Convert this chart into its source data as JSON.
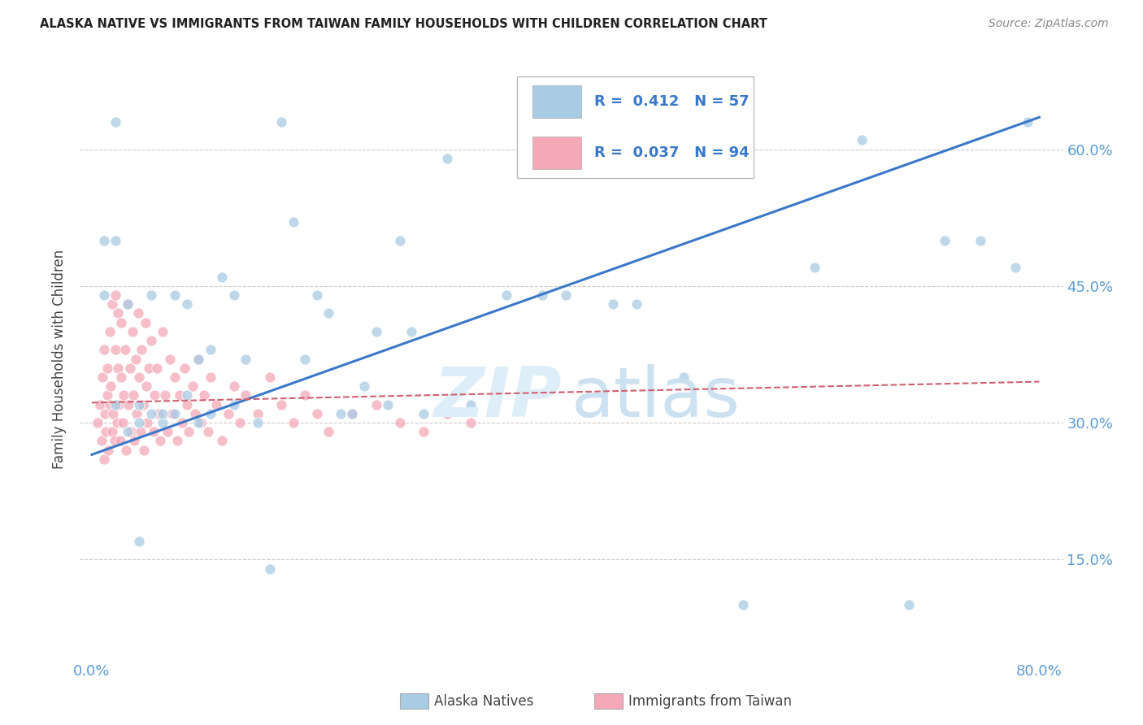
{
  "title": "ALASKA NATIVE VS IMMIGRANTS FROM TAIWAN FAMILY HOUSEHOLDS WITH CHILDREN CORRELATION CHART",
  "source": "Source: ZipAtlas.com",
  "ylabel": "Family Households with Children",
  "ytick_labels": [
    "15.0%",
    "30.0%",
    "45.0%",
    "60.0%"
  ],
  "ytick_values": [
    0.15,
    0.3,
    0.45,
    0.6
  ],
  "xlim": [
    -0.01,
    0.82
  ],
  "ylim": [
    0.04,
    0.7
  ],
  "legend_R1": "0.412",
  "legend_N1": "57",
  "legend_R2": "0.037",
  "legend_N2": "94",
  "color_blue": "#a8cce4",
  "color_pink": "#f4a8b8",
  "trendline_blue_color": "#3a78c9",
  "trendline_pink_color": "#d06070",
  "alaska_x": [
    0.01,
    0.01,
    0.02,
    0.02,
    0.02,
    0.03,
    0.03,
    0.04,
    0.04,
    0.05,
    0.05,
    0.06,
    0.06,
    0.07,
    0.07,
    0.08,
    0.08,
    0.09,
    0.09,
    0.1,
    0.1,
    0.11,
    0.12,
    0.12,
    0.13,
    0.14,
    0.15,
    0.16,
    0.17,
    0.18,
    0.19,
    0.2,
    0.21,
    0.22,
    0.23,
    0.24,
    0.25,
    0.26,
    0.27,
    0.28,
    0.3,
    0.32,
    0.35,
    0.38,
    0.4,
    0.44,
    0.46,
    0.5,
    0.55,
    0.61,
    0.65,
    0.69,
    0.72,
    0.75,
    0.78,
    0.79,
    0.04
  ],
  "alaska_y": [
    0.44,
    0.5,
    0.32,
    0.63,
    0.5,
    0.29,
    0.43,
    0.3,
    0.32,
    0.31,
    0.44,
    0.3,
    0.31,
    0.31,
    0.44,
    0.33,
    0.43,
    0.3,
    0.37,
    0.31,
    0.38,
    0.46,
    0.32,
    0.44,
    0.37,
    0.3,
    0.14,
    0.63,
    0.52,
    0.37,
    0.44,
    0.42,
    0.31,
    0.31,
    0.34,
    0.4,
    0.32,
    0.5,
    0.4,
    0.31,
    0.59,
    0.32,
    0.44,
    0.44,
    0.44,
    0.43,
    0.43,
    0.35,
    0.1,
    0.47,
    0.61,
    0.1,
    0.5,
    0.5,
    0.47,
    0.63,
    0.17
  ],
  "taiwan_x": [
    0.005,
    0.007,
    0.008,
    0.009,
    0.01,
    0.01,
    0.011,
    0.012,
    0.013,
    0.013,
    0.014,
    0.015,
    0.015,
    0.016,
    0.017,
    0.017,
    0.018,
    0.019,
    0.02,
    0.02,
    0.021,
    0.022,
    0.022,
    0.023,
    0.024,
    0.025,
    0.025,
    0.026,
    0.027,
    0.028,
    0.029,
    0.03,
    0.031,
    0.032,
    0.033,
    0.034,
    0.035,
    0.036,
    0.037,
    0.038,
    0.039,
    0.04,
    0.041,
    0.042,
    0.043,
    0.044,
    0.045,
    0.046,
    0.047,
    0.048,
    0.05,
    0.052,
    0.053,
    0.055,
    0.056,
    0.058,
    0.06,
    0.062,
    0.064,
    0.066,
    0.068,
    0.07,
    0.072,
    0.074,
    0.076,
    0.078,
    0.08,
    0.082,
    0.085,
    0.087,
    0.09,
    0.092,
    0.095,
    0.098,
    0.1,
    0.105,
    0.11,
    0.115,
    0.12,
    0.125,
    0.13,
    0.14,
    0.15,
    0.16,
    0.17,
    0.18,
    0.19,
    0.2,
    0.22,
    0.24,
    0.26,
    0.28,
    0.3,
    0.32
  ],
  "taiwan_y": [
    0.3,
    0.32,
    0.28,
    0.35,
    0.26,
    0.38,
    0.31,
    0.29,
    0.33,
    0.36,
    0.27,
    0.4,
    0.32,
    0.34,
    0.29,
    0.43,
    0.31,
    0.28,
    0.38,
    0.44,
    0.3,
    0.36,
    0.42,
    0.32,
    0.28,
    0.35,
    0.41,
    0.3,
    0.33,
    0.38,
    0.27,
    0.43,
    0.32,
    0.36,
    0.29,
    0.4,
    0.33,
    0.28,
    0.37,
    0.31,
    0.42,
    0.35,
    0.29,
    0.38,
    0.32,
    0.27,
    0.41,
    0.34,
    0.3,
    0.36,
    0.39,
    0.29,
    0.33,
    0.36,
    0.31,
    0.28,
    0.4,
    0.33,
    0.29,
    0.37,
    0.31,
    0.35,
    0.28,
    0.33,
    0.3,
    0.36,
    0.32,
    0.29,
    0.34,
    0.31,
    0.37,
    0.3,
    0.33,
    0.29,
    0.35,
    0.32,
    0.28,
    0.31,
    0.34,
    0.3,
    0.33,
    0.31,
    0.35,
    0.32,
    0.3,
    0.33,
    0.31,
    0.29,
    0.31,
    0.32,
    0.3,
    0.29,
    0.31,
    0.3
  ],
  "blue_trend_x0": 0.0,
  "blue_trend_y0": 0.265,
  "blue_trend_x1": 0.8,
  "blue_trend_y1": 0.635,
  "pink_trend_x0": 0.0,
  "pink_trend_y0": 0.322,
  "pink_trend_x1": 0.8,
  "pink_trend_y1": 0.345
}
